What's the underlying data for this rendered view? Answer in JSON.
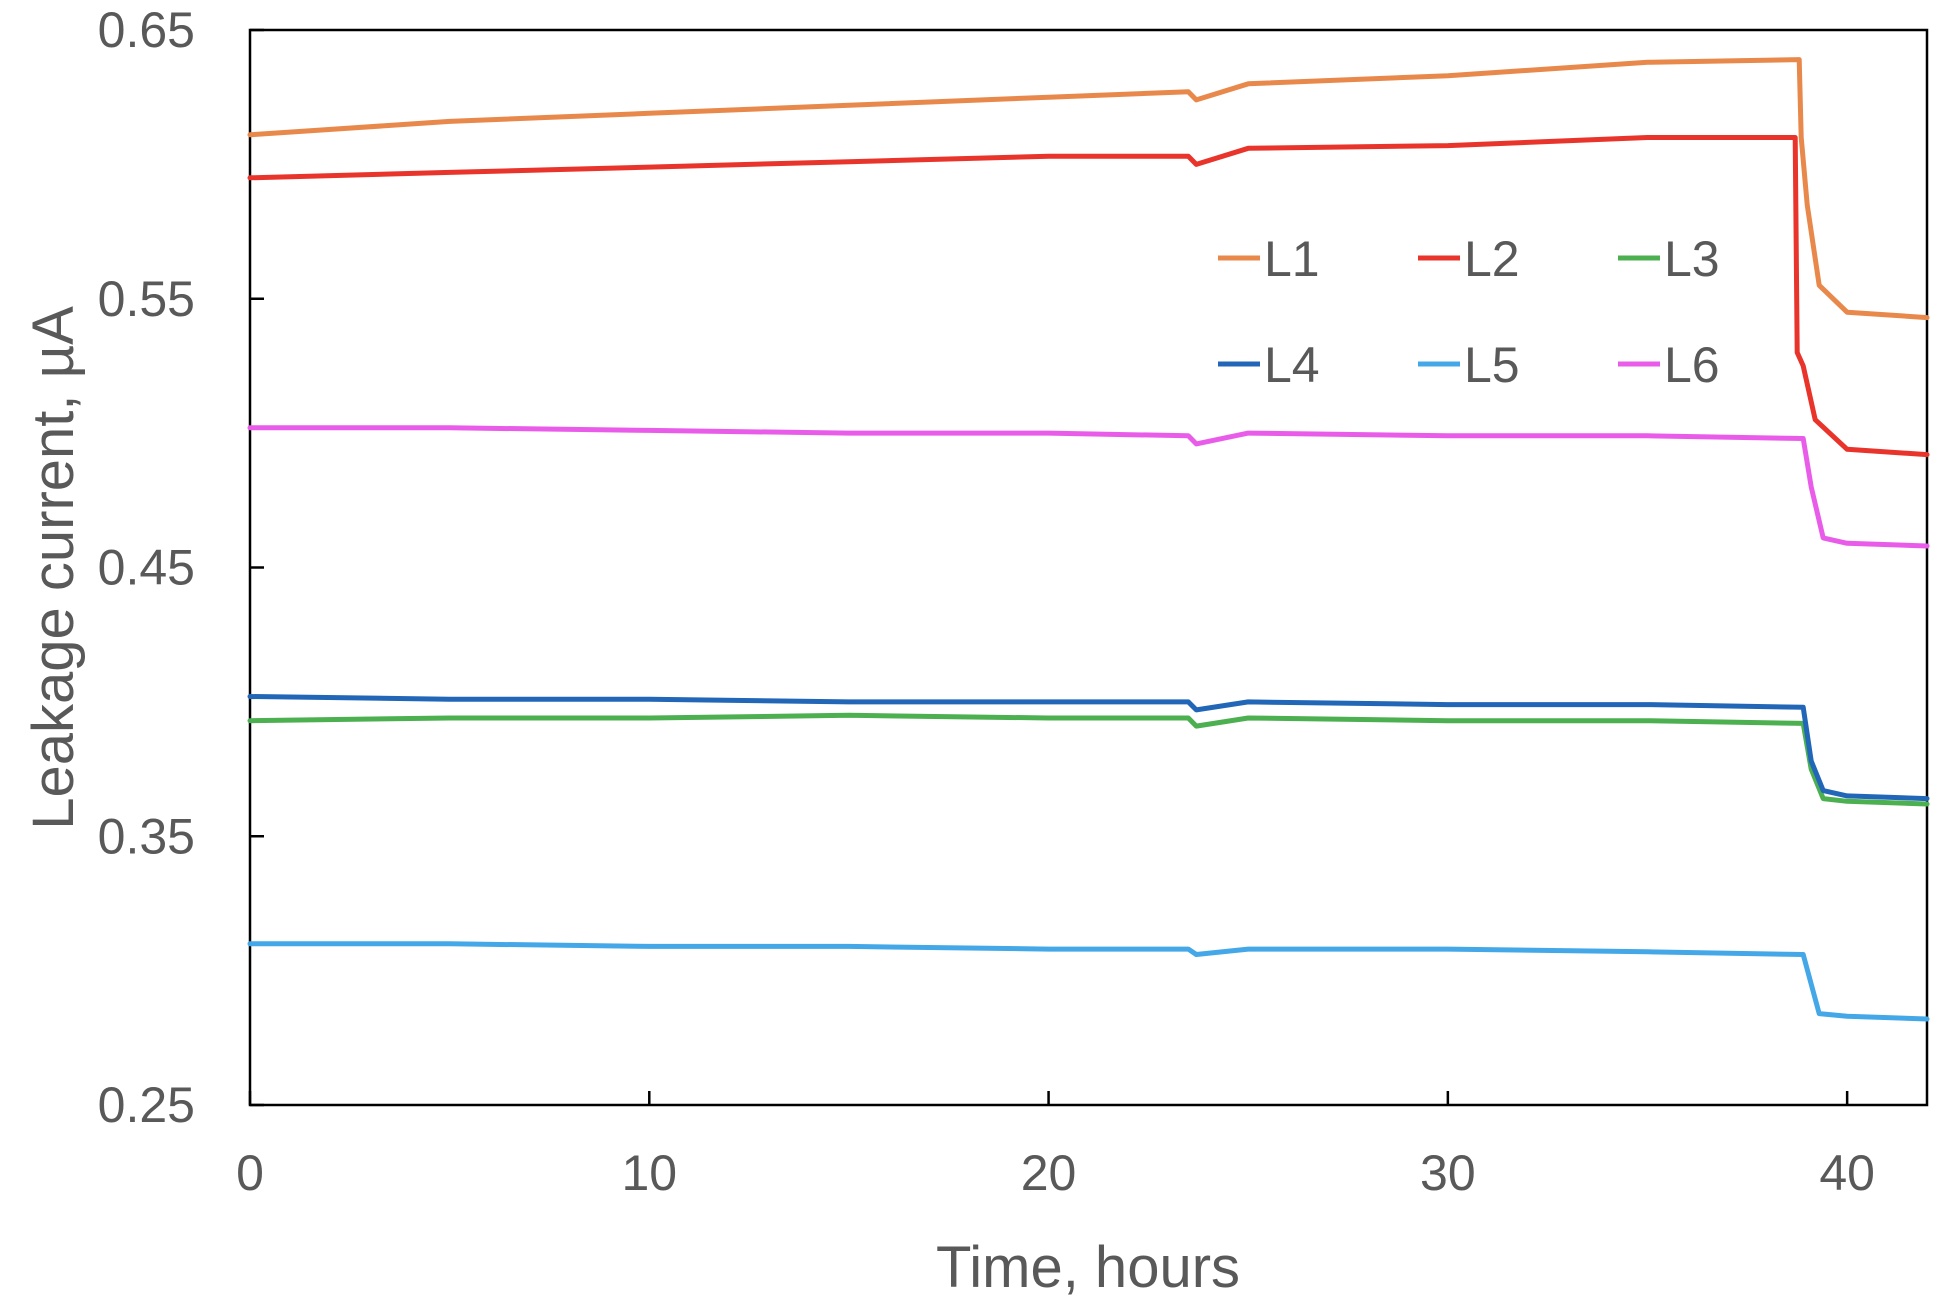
{
  "chart_data": {
    "type": "line",
    "xlabel": "Time, hours",
    "ylabel": "Leakage current, µA",
    "xlim": [
      0,
      42
    ],
    "ylim": [
      0.25,
      0.65
    ],
    "x_ticks": [
      0,
      10,
      20,
      30,
      40
    ],
    "x_tick_labels": [
      "0",
      "10",
      "20",
      "30",
      "40"
    ],
    "y_ticks": [
      0.25,
      0.35,
      0.45,
      0.55,
      0.65
    ],
    "y_tick_labels": [
      "0.25",
      "0.35",
      "0.45",
      "0.55",
      "0.65"
    ],
    "grid": false,
    "legend_position": "top-right",
    "legend_columns": 3,
    "series": [
      {
        "name": "L1",
        "color": "#E8884B",
        "x": [
          0,
          5,
          10,
          15,
          20,
          23.5,
          23.7,
          25,
          30,
          35,
          38.8,
          38.85,
          39.0,
          39.3,
          40,
          42
        ],
        "y": [
          0.611,
          0.616,
          0.619,
          0.622,
          0.625,
          0.627,
          0.624,
          0.63,
          0.633,
          0.638,
          0.639,
          0.61,
          0.585,
          0.555,
          0.545,
          0.543
        ]
      },
      {
        "name": "L2",
        "color": "#E8342A",
        "x": [
          0,
          5,
          10,
          15,
          20,
          23.5,
          23.7,
          25,
          30,
          35,
          38.7,
          38.75,
          38.9,
          39.2,
          40,
          42
        ],
        "y": [
          0.595,
          0.597,
          0.599,
          0.601,
          0.603,
          0.603,
          0.6,
          0.606,
          0.607,
          0.61,
          0.61,
          0.53,
          0.525,
          0.505,
          0.494,
          0.492
        ]
      },
      {
        "name": "L3",
        "color": "#4CAF50",
        "x": [
          0,
          5,
          10,
          15,
          20,
          23.5,
          23.7,
          25,
          30,
          35,
          38.9,
          39.1,
          39.4,
          40,
          42
        ],
        "y": [
          0.393,
          0.394,
          0.394,
          0.395,
          0.394,
          0.394,
          0.391,
          0.394,
          0.393,
          0.393,
          0.392,
          0.375,
          0.364,
          0.363,
          0.362
        ]
      },
      {
        "name": "L4",
        "color": "#2266B8",
        "x": [
          0,
          5,
          10,
          15,
          20,
          23.5,
          23.7,
          25,
          30,
          35,
          38.9,
          39.1,
          39.4,
          40,
          42
        ],
        "y": [
          0.402,
          0.401,
          0.401,
          0.4,
          0.4,
          0.4,
          0.397,
          0.4,
          0.399,
          0.399,
          0.398,
          0.378,
          0.367,
          0.365,
          0.364
        ]
      },
      {
        "name": "L5",
        "color": "#44A8E8",
        "x": [
          0,
          5,
          10,
          15,
          20,
          23.5,
          23.7,
          25,
          30,
          35,
          38.9,
          39.1,
          39.3,
          40,
          42
        ],
        "y": [
          0.31,
          0.31,
          0.309,
          0.309,
          0.308,
          0.308,
          0.306,
          0.308,
          0.308,
          0.307,
          0.306,
          0.295,
          0.284,
          0.283,
          0.282
        ]
      },
      {
        "name": "L6",
        "color": "#E95CE9",
        "x": [
          0,
          5,
          10,
          15,
          20,
          23.5,
          23.7,
          25,
          30,
          35,
          38.9,
          39.1,
          39.4,
          40,
          42
        ],
        "y": [
          0.502,
          0.502,
          0.501,
          0.5,
          0.5,
          0.499,
          0.496,
          0.5,
          0.499,
          0.499,
          0.498,
          0.48,
          0.461,
          0.459,
          0.458
        ]
      }
    ]
  }
}
